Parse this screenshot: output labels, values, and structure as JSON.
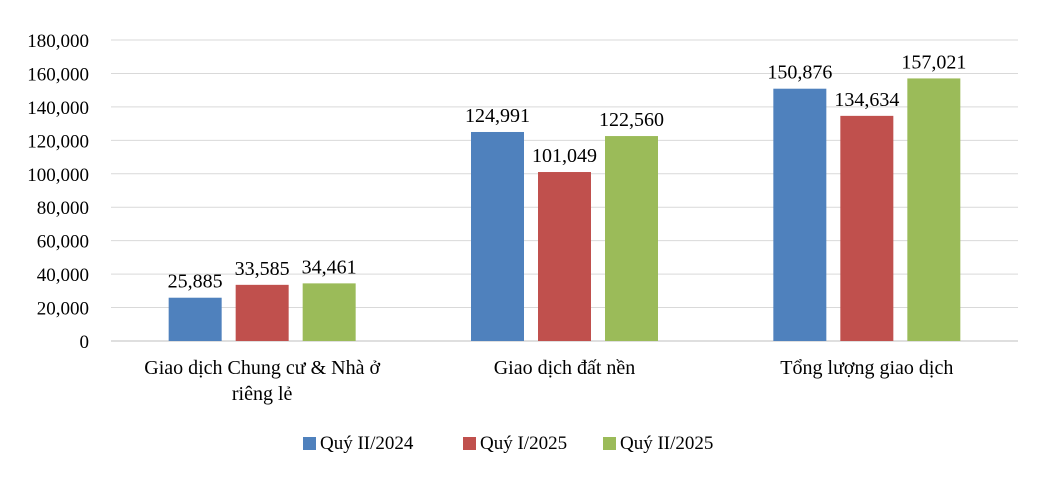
{
  "chart_data": {
    "type": "bar",
    "title": "",
    "xlabel": "",
    "ylabel": "",
    "ylim": [
      0,
      180000
    ],
    "yticks": [
      0,
      20000,
      40000,
      60000,
      80000,
      100000,
      120000,
      140000,
      160000,
      180000
    ],
    "ytick_labels": [
      "0",
      "20,000",
      "40,000",
      "60,000",
      "80,000",
      "100,000",
      "120,000",
      "140,000",
      "160,000",
      "180,000"
    ],
    "grid": true,
    "legend_position": "bottom",
    "categories": [
      [
        "Giao dịch Chung cư & Nhà ở",
        "riêng lẻ"
      ],
      [
        "Giao dịch đất nền"
      ],
      [
        "Tổng lượng giao dịch"
      ]
    ],
    "series": [
      {
        "name": "Quý II/2024",
        "color": "#4f81bd",
        "values": [
          25885,
          124991,
          150876
        ],
        "labels": [
          "25,885",
          "124,991",
          "150,876"
        ]
      },
      {
        "name": "Quý I/2025",
        "color": "#c0504d",
        "values": [
          33585,
          101049,
          134634
        ],
        "labels": [
          "33,585",
          "101,049",
          "134,634"
        ]
      },
      {
        "name": "Quý II/2025",
        "color": "#9bbb59",
        "values": [
          34461,
          122560,
          157021
        ],
        "labels": [
          "34,461",
          "122,560",
          "157,021"
        ]
      }
    ]
  }
}
